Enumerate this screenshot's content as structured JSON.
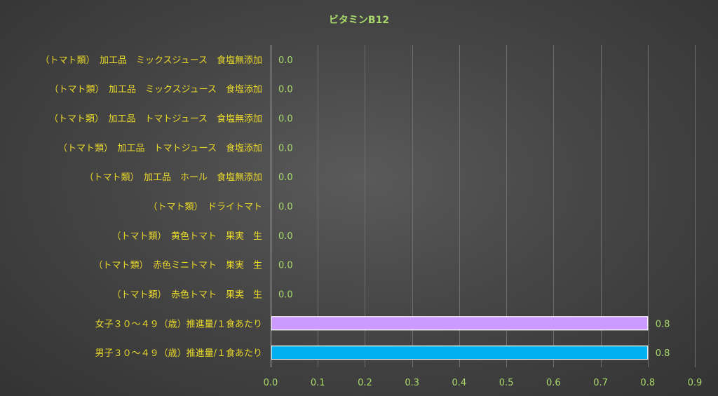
{
  "chart_data": {
    "type": "bar",
    "orientation": "horizontal",
    "title": "ビタミンB12",
    "categories": [
      "（トマト類）　加工品　ミックスジュース　食塩無添加",
      "（トマト類）　加工品　ミックスジュース　食塩添加",
      "（トマト類）　加工品　トマトジュース　食塩無添加",
      "（トマト類）　加工品　トマトジュース　食塩添加",
      "（トマト類）　加工品　ホール　食塩無添加",
      "（トマト類）　ドライトマト",
      "（トマト類）　黄色トマト　果実　生",
      "（トマト類）　赤色ミニトマト　果実　生",
      "（トマト類）　赤色トマト　果実　生",
      "女子３０～４９（歳）推進量/１食あたり",
      "男子３０～４９（歳）推進量/１食あたり"
    ],
    "values": [
      0.0,
      0.0,
      0.0,
      0.0,
      0.0,
      0.0,
      0.0,
      0.0,
      0.0,
      0.8,
      0.8
    ],
    "value_labels": [
      "0.0",
      "0.0",
      "0.0",
      "0.0",
      "0.0",
      "0.0",
      "0.0",
      "0.0",
      "0.0",
      "0.8",
      "0.8"
    ],
    "bar_colors": [
      "#9a9a9a",
      "#9a9a9a",
      "#9a9a9a",
      "#9a9a9a",
      "#9a9a9a",
      "#9a9a9a",
      "#9a9a9a",
      "#9a9a9a",
      "#9a9a9a",
      "#cc99ff",
      "#00b0f0"
    ],
    "xlim": [
      0,
      0.9
    ],
    "xticks": [
      "0.0",
      "0.1",
      "0.2",
      "0.3",
      "0.4",
      "0.5",
      "0.6",
      "0.7",
      "0.8",
      "0.9"
    ],
    "grid": true,
    "legend": "none",
    "colors": {
      "title": "#a9d96b",
      "category_labels": "#e8d72a",
      "value_labels": "#a9d96b",
      "tick_labels": "#a9d96b"
    }
  }
}
